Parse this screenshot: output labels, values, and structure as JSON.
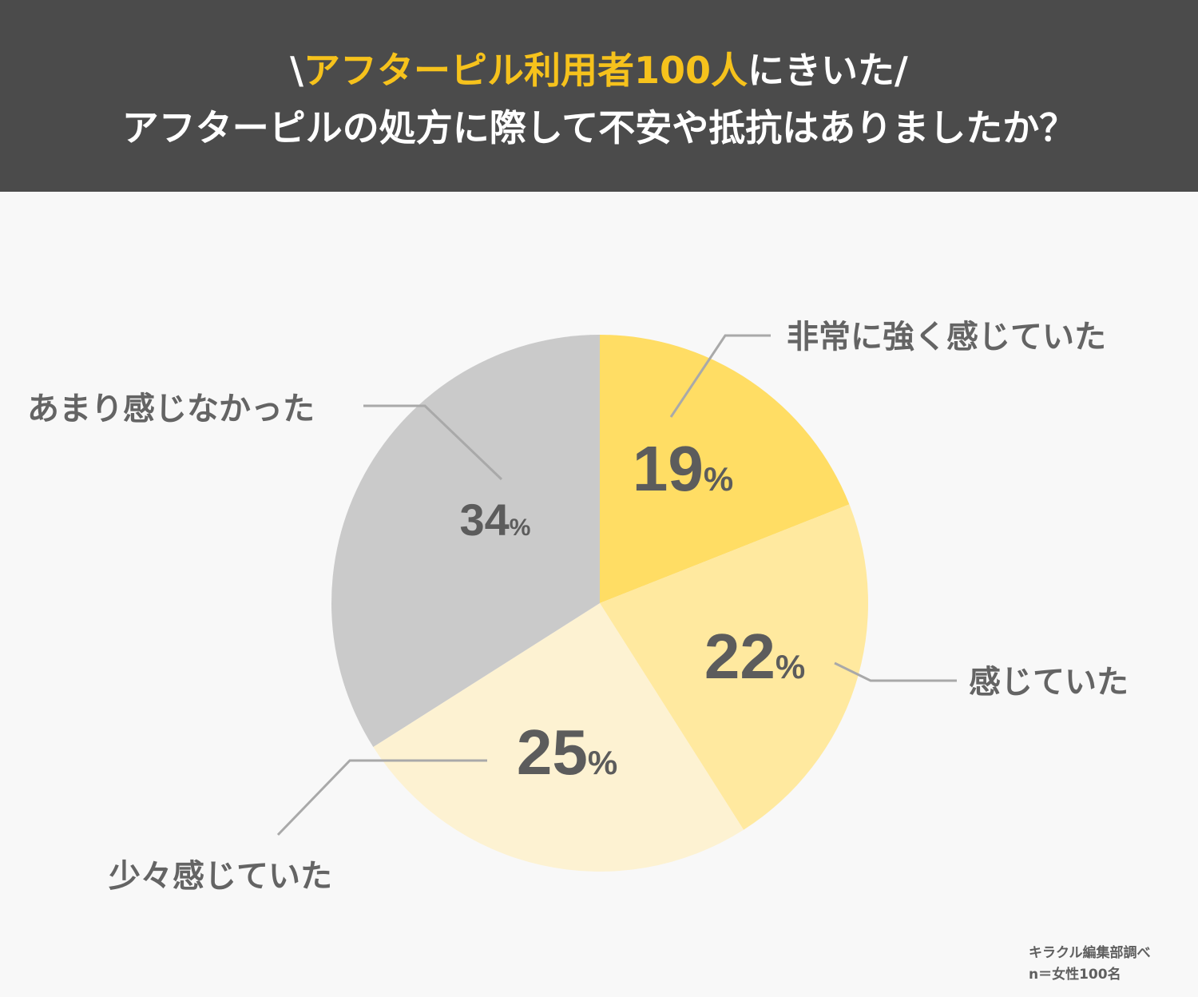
{
  "header": {
    "title_prefix": "\\",
    "title_highlight": "アフターピル利用者100人",
    "title_suffix": "にきいた/",
    "question": "アフターピルの処方に際して不安や抵抗はありましたか？"
  },
  "colors": {
    "header_bg": "#4b4b4b",
    "accent": "#f6c21c",
    "slice_strong": "#ffdd64",
    "slice_felt": "#ffe99f",
    "slice_little": "#fdf2d2",
    "slice_not": "#cacaca",
    "label_text": "#646464"
  },
  "chart_data": {
    "type": "pie",
    "unit": "%",
    "slices": [
      {
        "label": "非常に強く感じていた",
        "value": 19
      },
      {
        "label": "感じていた",
        "value": 22
      },
      {
        "label": "少々感じていた",
        "value": 25
      },
      {
        "label": "あまり感じなかった",
        "value": 34
      }
    ]
  },
  "source": {
    "credit": "キラクル編集部調べ",
    "sample": "n＝女性100名"
  }
}
